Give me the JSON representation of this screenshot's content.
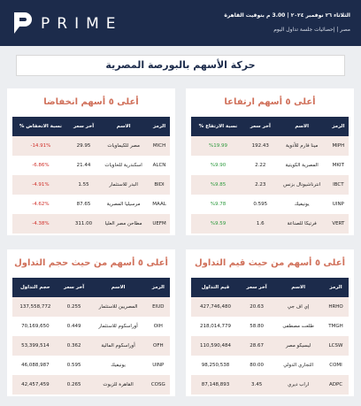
{
  "header": {
    "logo": "PRIME",
    "date": "الثلاثاء ٢٦ نوفمبر ٢٠٢٤ | 3.00 م بتوقيت القاهرة",
    "subtitle": "مصر | إحصائيات جلسة تداول اليوم"
  },
  "title": "حركة الأسهم بالبورصة المصرية",
  "panels": [
    {
      "title": "أعلى ٥ أسهم ارتفاعا",
      "tone": "up",
      "columns": [
        "الرمز",
        "الاسم",
        "آخر سعر",
        "نسبة الارتفاع %"
      ],
      "rows": [
        [
          "MIPH",
          "مينا فارم للأدوية",
          "192.43",
          "%19.99"
        ],
        [
          "MKIT",
          "المصرية الكويتية",
          "2.22",
          "%9.90"
        ],
        [
          "IBCT",
          "انترناشيونال بزنس",
          "2.23",
          "%9.85"
        ],
        [
          "UINP",
          "يونيفيك",
          "0.595",
          "%9.78"
        ],
        [
          "VERT",
          "فرتيكا للصناعة",
          "1.6",
          "%9.59"
        ]
      ]
    },
    {
      "title": "أعلى ٥ أسهم انخفاضا",
      "tone": "down",
      "columns": [
        "الرمز",
        "الاسم",
        "آخر سعر",
        "نسبة الانخفاض %"
      ],
      "rows": [
        [
          "MICH",
          "مصر للكيماويات",
          "29.95",
          "-14.91%"
        ],
        [
          "ALCN",
          "اسكندرية للحاويات",
          "21.44",
          "-6.86%"
        ],
        [
          "BIDI",
          "البدر للاستثمار",
          "1.55",
          "-4.91%"
        ],
        [
          "MAAL",
          "مرسيليا المصرية",
          "87.65",
          "-4.62%"
        ],
        [
          "UEFM",
          "مطاحن مصر العليا",
          "311.00",
          "-4.38%"
        ]
      ]
    },
    {
      "title": "أعلى ٥ أسهم من حيث قيم التداول",
      "tone": "plain",
      "columns": [
        "الرمز",
        "الاسم",
        "آخر سعر",
        "قيم التداول"
      ],
      "rows": [
        [
          "HRHO",
          "إي اف جي",
          "20.63",
          "427,746,480"
        ],
        [
          "TMGH",
          "طلعت مصطفى",
          "58.80",
          "218,014,779"
        ],
        [
          "LCSW",
          "ليسيكو مصر",
          "28.67",
          "110,590,484"
        ],
        [
          "COMI",
          "التجاري الدولي",
          "80.00",
          "98,250,538"
        ],
        [
          "ADPC",
          "اراب ديري",
          "3.45",
          "87,148,893"
        ]
      ]
    },
    {
      "title": "أعلى ٥ أسهم من حيث حجم التداول",
      "tone": "plain",
      "columns": [
        "الرمز",
        "الاسم",
        "آخر سعر",
        "حجم التداول"
      ],
      "rows": [
        [
          "EIUD",
          "المصريين للاستثمار",
          "0.255",
          "137,558,772"
        ],
        [
          "OIH",
          "أوراسكوم للاستثمار",
          "0.449",
          "70,169,650"
        ],
        [
          "OFH",
          "أوراسكوم المالية",
          "0.362",
          "53,399,514"
        ],
        [
          "UINP",
          "يونيفيك",
          "0.595",
          "46,088,987"
        ],
        [
          "COSG",
          "القاهرة للزيوت",
          "0.265",
          "42,457,459"
        ]
      ]
    }
  ]
}
